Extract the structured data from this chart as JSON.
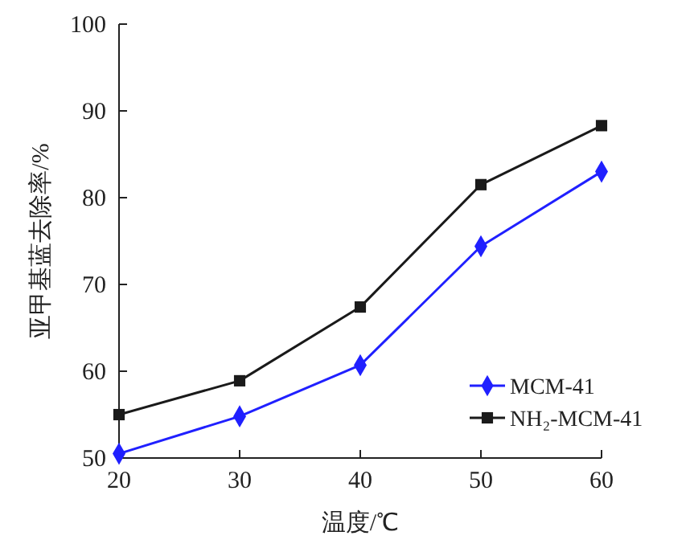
{
  "chart_data": {
    "type": "line",
    "xlabel": "温度/℃",
    "ylabel": "亚甲基蓝去除率/%",
    "x": [
      20,
      30,
      40,
      50,
      60
    ],
    "series": [
      {
        "name": "MCM-41",
        "color": "#2020ff",
        "marker": "diamond",
        "values": [
          50.5,
          54.8,
          60.7,
          74.4,
          83
        ]
      },
      {
        "name": "NH₂-MCM-41",
        "color": "#1a1a1a",
        "marker": "square",
        "values": [
          55,
          58.9,
          67.4,
          81.5,
          88.3
        ]
      }
    ],
    "xlim": [
      20,
      60
    ],
    "xticks": [
      20,
      30,
      40,
      50,
      60
    ],
    "ylim": [
      50,
      100
    ],
    "yticks": [
      50,
      60,
      70,
      80,
      90,
      100
    ],
    "grid": false,
    "legend": "bottom right"
  }
}
